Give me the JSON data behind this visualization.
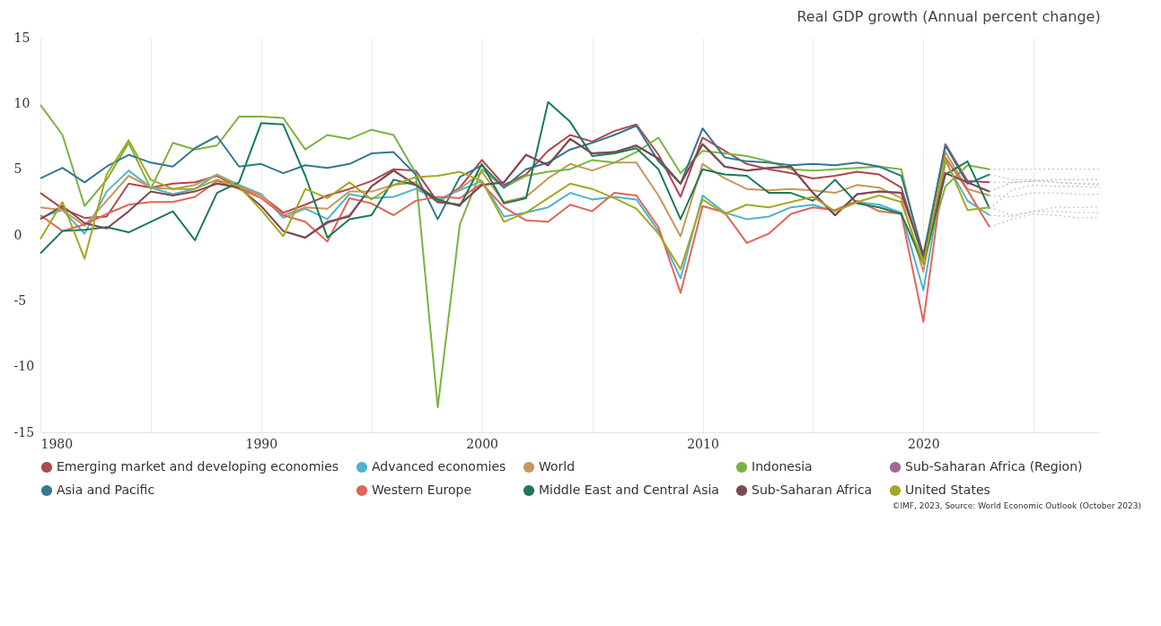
{
  "chart_data": {
    "type": "line",
    "subtitle": "Real GDP growth (Annual percent change)",
    "x": [
      1980,
      1981,
      1982,
      1983,
      1984,
      1985,
      1986,
      1987,
      1988,
      1989,
      1990,
      1991,
      1992,
      1993,
      1994,
      1995,
      1996,
      1997,
      1998,
      1999,
      2000,
      2001,
      2002,
      2003,
      2004,
      2005,
      2006,
      2007,
      2008,
      2009,
      2010,
      2011,
      2012,
      2013,
      2014,
      2015,
      2016,
      2017,
      2018,
      2019,
      2020,
      2021,
      2022,
      2023
    ],
    "xlim": [
      1980,
      2028
    ],
    "xticks": [
      1980,
      {
        "value": 1985,
        "label": null
      },
      1990,
      {
        "value": 1995,
        "label": null
      },
      2000,
      {
        "value": 2005,
        "label": null
      },
      2010,
      {
        "value": 2015,
        "label": null
      },
      2020,
      {
        "value": 2025,
        "label": null
      }
    ],
    "ylim": [
      -15,
      15
    ],
    "yticks": [
      -15,
      -10,
      -5,
      0,
      5,
      10,
      15
    ],
    "grid": "x",
    "legend": "bottom",
    "annotations": [
      "©IMF, 2023, Source: World Economic Outlook (October 2023)"
    ],
    "series": [
      {
        "name": "Emerging market and developing economies",
        "color": "#b0464f",
        "values": [
          3.2,
          2.0,
          1.3,
          1.4,
          3.9,
          3.6,
          3.9,
          4.0,
          4.5,
          3.6,
          3.0,
          1.7,
          2.3,
          3.0,
          3.5,
          4.1,
          5.0,
          4.9,
          2.5,
          3.6,
          5.7,
          3.8,
          4.6,
          6.4,
          7.6,
          7.1,
          7.9,
          8.4,
          6.1,
          2.9,
          7.4,
          6.4,
          5.4,
          5.0,
          4.7,
          4.3,
          4.5,
          4.8,
          4.6,
          3.6,
          -1.8,
          6.9,
          4.1,
          4.0
        ]
      },
      {
        "name": "Advanced economies",
        "color": "#4fb3cf",
        "values": [
          1.3,
          1.9,
          0.1,
          3.3,
          4.9,
          3.6,
          3.1,
          3.5,
          4.6,
          3.8,
          3.1,
          1.3,
          2.0,
          1.2,
          3.1,
          2.8,
          2.9,
          3.5,
          2.7,
          3.4,
          4.1,
          1.4,
          1.7,
          2.1,
          3.2,
          2.7,
          2.9,
          2.7,
          0.3,
          -3.3,
          3.0,
          1.7,
          1.2,
          1.4,
          2.1,
          2.3,
          1.8,
          2.5,
          2.3,
          1.7,
          -4.2,
          5.6,
          2.6,
          1.5
        ]
      },
      {
        "name": "World",
        "color": "#c8975a",
        "values": [
          2.1,
          1.9,
          0.7,
          2.6,
          4.5,
          3.6,
          3.5,
          3.8,
          4.6,
          3.7,
          3.0,
          1.5,
          2.1,
          2.0,
          3.3,
          3.3,
          3.8,
          4.0,
          2.5,
          3.5,
          4.8,
          2.5,
          2.9,
          4.3,
          5.4,
          4.9,
          5.5,
          5.5,
          3.0,
          -0.1,
          5.4,
          4.3,
          3.5,
          3.4,
          3.5,
          3.4,
          3.2,
          3.8,
          3.6,
          2.8,
          -2.8,
          6.3,
          3.5,
          3.0
        ]
      },
      {
        "name": "Indonesia",
        "color": "#7bb33f",
        "values": [
          9.9,
          7.6,
          2.2,
          4.2,
          7.0,
          3.5,
          7.0,
          6.5,
          6.8,
          9.0,
          9.0,
          8.9,
          6.5,
          7.6,
          7.3,
          8.0,
          7.6,
          4.7,
          -13.1,
          0.8,
          5.0,
          3.6,
          4.5,
          4.8,
          5.0,
          5.7,
          5.5,
          6.3,
          7.4,
          4.7,
          6.4,
          6.2,
          6.0,
          5.6,
          5.0,
          4.9,
          5.0,
          5.1,
          5.2,
          5.0,
          -2.1,
          3.7,
          5.3,
          5.0
        ]
      },
      {
        "name": "Sub-Saharan Africa (Region)",
        "color": "#a2688f",
        "values": [
          null,
          null,
          null,
          null,
          null,
          null,
          null,
          null,
          null,
          null,
          null,
          0.3,
          -0.2,
          0.9,
          1.5,
          3.7,
          4.9,
          3.8,
          2.5,
          2.3,
          3.8,
          4.0,
          6.1,
          5.3,
          7.3,
          6.2,
          6.3,
          6.8,
          5.8,
          3.9,
          6.9,
          5.2,
          4.9,
          5.1,
          5.2,
          3.2,
          1.5,
          3.1,
          3.3,
          3.2,
          -1.6,
          4.7,
          4.0,
          3.3
        ]
      },
      {
        "name": "Asia and Pacific",
        "color": "#33788f",
        "values": [
          4.3,
          5.1,
          4.0,
          5.2,
          6.1,
          5.5,
          5.2,
          6.6,
          7.5,
          5.2,
          5.4,
          4.7,
          5.3,
          5.1,
          5.4,
          6.2,
          6.3,
          4.6,
          1.2,
          4.4,
          5.3,
          3.6,
          5.0,
          5.5,
          6.5,
          7.0,
          7.6,
          8.3,
          5.6,
          3.9,
          8.1,
          5.9,
          5.6,
          5.5,
          5.3,
          5.4,
          5.3,
          5.5,
          5.2,
          4.5,
          -1.5,
          6.8,
          3.9,
          4.6
        ]
      },
      {
        "name": "Western Europe",
        "color": "#e2655a",
        "values": [
          1.5,
          0.3,
          0.8,
          1.6,
          2.3,
          2.5,
          2.5,
          2.9,
          4.1,
          3.5,
          2.8,
          1.5,
          1.0,
          -0.5,
          2.8,
          2.4,
          1.5,
          2.6,
          2.9,
          2.8,
          3.9,
          2.1,
          1.1,
          1.0,
          2.3,
          1.8,
          3.2,
          3.0,
          0.6,
          -4.4,
          2.2,
          1.7,
          -0.6,
          0.1,
          1.6,
          2.1,
          1.9,
          2.6,
          1.8,
          1.6,
          -6.6,
          5.9,
          3.4,
          0.6
        ]
      },
      {
        "name": "Middle East and Central Asia",
        "color": "#1a7a55",
        "values": [
          -1.4,
          0.3,
          0.4,
          0.6,
          0.2,
          1.0,
          1.8,
          -0.4,
          3.2,
          4.0,
          8.5,
          8.4,
          4.5,
          -0.2,
          1.2,
          1.5,
          4.2,
          3.8,
          2.7,
          2.2,
          5.4,
          2.4,
          2.8,
          10.1,
          8.6,
          6.0,
          6.2,
          6.6,
          5.0,
          1.2,
          5.0,
          4.6,
          4.5,
          3.2,
          3.2,
          2.6,
          4.2,
          2.4,
          2.1,
          1.6,
          -2.2,
          4.6,
          5.6,
          2.0
        ]
      },
      {
        "name": "Sub-Saharan Africa",
        "color": "#7a4a4f",
        "values": [
          1.2,
          2.2,
          0.9,
          0.5,
          1.8,
          3.3,
          3.0,
          3.3,
          3.9,
          3.6,
          2.2,
          0.3,
          -0.2,
          1.0,
          1.4,
          3.7,
          4.9,
          3.8,
          2.5,
          2.3,
          3.8,
          4.0,
          6.1,
          5.3,
          7.3,
          6.2,
          6.3,
          6.8,
          5.8,
          3.9,
          6.9,
          5.2,
          4.9,
          5.1,
          5.2,
          3.2,
          1.5,
          3.1,
          3.3,
          3.2,
          -1.6,
          4.7,
          4.0,
          3.3
        ]
      },
      {
        "name": "United States",
        "color": "#a5a81f",
        "values": [
          -0.3,
          2.5,
          -1.8,
          4.6,
          7.2,
          4.2,
          3.5,
          3.5,
          4.2,
          3.7,
          1.9,
          -0.1,
          3.5,
          2.8,
          4.0,
          2.7,
          3.8,
          4.4,
          4.5,
          4.8,
          4.1,
          1.0,
          1.7,
          2.8,
          3.9,
          3.5,
          2.8,
          2.0,
          0.1,
          -2.6,
          2.7,
          1.6,
          2.3,
          2.1,
          2.5,
          2.9,
          1.8,
          2.5,
          3.0,
          2.5,
          -2.2,
          5.8,
          1.9,
          2.1
        ]
      },
      {
        "color": "#c4c4c4",
        "line_style": "dotted",
        "x": [
          2023,
          2024,
          2025,
          2026,
          2027,
          2028
        ],
        "values": [
          4.0,
          4.0,
          4.1,
          4.0,
          3.9,
          3.9
        ]
      },
      {
        "color": "#c4c4c4",
        "line_style": "dotted",
        "x": [
          2023,
          2024,
          2025,
          2026,
          2027,
          2028
        ],
        "values": [
          1.5,
          1.4,
          1.8,
          1.8,
          1.7,
          1.7
        ]
      },
      {
        "color": "#c4c4c4",
        "line_style": "dotted",
        "x": [
          2023,
          2024,
          2025,
          2026,
          2027,
          2028
        ],
        "values": [
          3.0,
          2.9,
          3.2,
          3.2,
          3.1,
          3.1
        ]
      },
      {
        "color": "#c4c4c4",
        "line_style": "dotted",
        "x": [
          2023,
          2024,
          2025,
          2026,
          2027,
          2028
        ],
        "values": [
          5.0,
          5.0,
          5.0,
          5.0,
          5.0,
          5.0
        ]
      },
      {
        "color": "#c4c4c4",
        "line_style": "dotted",
        "x": [
          2023,
          2024,
          2025,
          2026,
          2027,
          2028
        ],
        "values": [
          3.3,
          4.0,
          4.1,
          4.2,
          4.2,
          4.2
        ]
      },
      {
        "color": "#c4c4c4",
        "line_style": "dotted",
        "x": [
          2023,
          2024,
          2025,
          2026,
          2027,
          2028
        ],
        "values": [
          4.6,
          4.2,
          4.2,
          4.0,
          3.9,
          3.8
        ]
      },
      {
        "color": "#c4c4c4",
        "line_style": "dotted",
        "x": [
          2023,
          2024,
          2025,
          2026,
          2027,
          2028
        ],
        "values": [
          0.6,
          1.2,
          1.6,
          1.5,
          1.3,
          1.3
        ]
      },
      {
        "color": "#c4c4c4",
        "line_style": "dotted",
        "x": [
          2023,
          2024,
          2025,
          2026,
          2027,
          2028
        ],
        "values": [
          2.0,
          3.4,
          3.8,
          3.7,
          3.7,
          3.6
        ]
      },
      {
        "color": "#c4c4c4",
        "line_style": "dotted",
        "x": [
          2023,
          2024,
          2025,
          2026,
          2027,
          2028
        ],
        "values": [
          3.3,
          4.0,
          4.1,
          4.2,
          4.2,
          4.2
        ]
      },
      {
        "color": "#c4c4c4",
        "line_style": "dotted",
        "x": [
          2023,
          2024,
          2025,
          2026,
          2027,
          2028
        ],
        "values": [
          2.1,
          1.5,
          1.8,
          2.1,
          2.1,
          2.1
        ]
      }
    ]
  }
}
